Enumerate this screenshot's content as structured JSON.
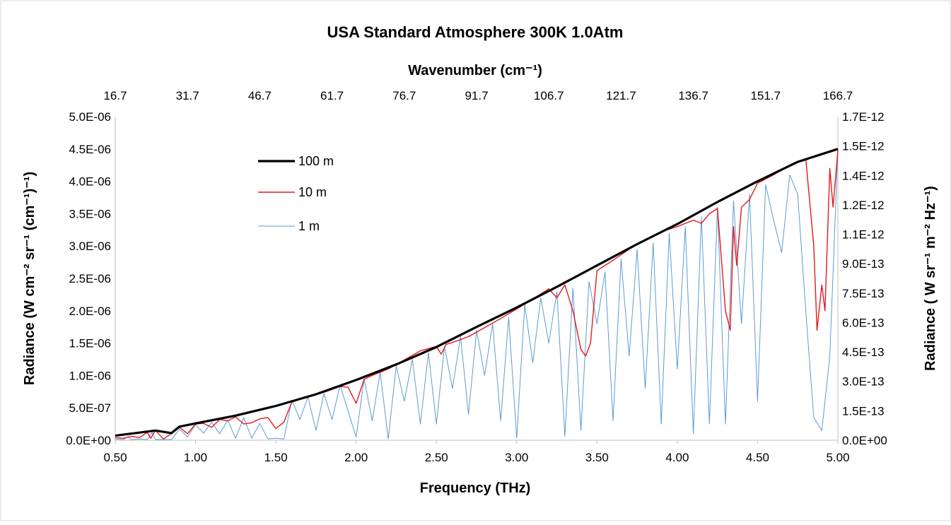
{
  "chart_data": {
    "type": "line",
    "title": "USA Standard Atmosphere  300K 1.0Atm",
    "xlabel": "Frequency (THz)",
    "ylabel_left": "Radiance  (W cm⁻² sr⁻¹ (cm⁻¹)⁻¹)",
    "x2label": "Wavenumber (cm⁻¹)",
    "ylabel_right": "Radiance ( W sr⁻¹ m⁻² Hz⁻¹)",
    "xlim": [
      0.5,
      5.0
    ],
    "ylim": [
      0,
      5e-06
    ],
    "y2lim": [
      0,
      1.7e-12
    ],
    "grid": false,
    "legend_position": "top-left",
    "x_ticks": [
      "0.50",
      "1.00",
      "1.50",
      "2.00",
      "2.50",
      "3.00",
      "3.50",
      "4.00",
      "4.50",
      "5.00"
    ],
    "x2_ticks": [
      "16.7",
      "31.7",
      "46.7",
      "61.7",
      "76.7",
      "91.7",
      "106.7",
      "121.7",
      "136.7",
      "151.7",
      "166.7"
    ],
    "y_ticks": [
      "0.0E+00",
      "5.0E-07",
      "1.0E-06",
      "1.5E-06",
      "2.0E-06",
      "2.5E-06",
      "3.0E-06",
      "3.5E-06",
      "4.0E-06",
      "4.5E-06",
      "5.0E-06"
    ],
    "y2_ticks": [
      "0.0E+00",
      "1.5E-13",
      "3.0E-13",
      "4.5E-13",
      "6.0E-13",
      "7.5E-13",
      "9.0E-13",
      "1.1E-12",
      "1.2E-12",
      "1.4E-12",
      "1.5E-12",
      "1.7E-12"
    ],
    "series": [
      {
        "name": "100 m",
        "color": "#000000",
        "x": [
          0.5,
          0.75,
          0.85,
          0.9,
          1.0,
          1.25,
          1.5,
          1.75,
          2.0,
          2.25,
          2.5,
          2.75,
          3.0,
          3.25,
          3.5,
          3.75,
          4.0,
          4.25,
          4.5,
          4.75,
          5.0
        ],
        "y": [
          7e-08,
          1.5e-07,
          1.1e-07,
          2.1e-07,
          2.6e-07,
          3.8e-07,
          5.3e-07,
          7.1e-07,
          9.3e-07,
          1.17e-06,
          1.44e-06,
          1.75e-06,
          2.05e-06,
          2.37e-06,
          2.7e-06,
          3.03e-06,
          3.34e-06,
          3.68e-06,
          4e-06,
          4.3e-06,
          4.5e-06
        ]
      },
      {
        "name": "10 m",
        "color": "#e31a1c",
        "x": [
          0.5,
          0.55,
          0.6,
          0.65,
          0.7,
          0.72,
          0.75,
          0.8,
          0.85,
          0.9,
          0.95,
          1.0,
          1.05,
          1.1,
          1.15,
          1.2,
          1.25,
          1.3,
          1.35,
          1.4,
          1.45,
          1.5,
          1.55,
          1.6,
          1.7,
          1.8,
          1.9,
          1.95,
          2.0,
          2.05,
          2.1,
          2.2,
          2.3,
          2.4,
          2.5,
          2.53,
          2.56,
          2.6,
          2.7,
          2.8,
          2.9,
          3.0,
          3.1,
          3.2,
          3.25,
          3.3,
          3.35,
          3.4,
          3.43,
          3.46,
          3.5,
          3.6,
          3.7,
          3.8,
          3.9,
          4.0,
          4.1,
          4.15,
          4.2,
          4.25,
          4.3,
          4.33,
          4.35,
          4.37,
          4.4,
          4.45,
          4.5,
          4.6,
          4.7,
          4.8,
          4.85,
          4.87,
          4.9,
          4.92,
          4.95,
          4.97,
          5.0
        ],
        "y": [
          4e-08,
          3e-08,
          6e-08,
          4e-08,
          1.2e-07,
          3e-08,
          1.5e-07,
          2e-08,
          1e-07,
          2e-07,
          1e-07,
          2.5e-07,
          2.6e-07,
          2e-07,
          3.2e-07,
          3e-07,
          3.6e-07,
          2.5e-07,
          2.7e-07,
          3.3e-07,
          3.5e-07,
          1.8e-07,
          2.8e-07,
          5.9e-07,
          6.7e-07,
          7.4e-07,
          8.3e-07,
          8.2e-07,
          5.7e-07,
          9.4e-07,
          1e-06,
          1.1e-06,
          1.24e-06,
          1.38e-06,
          1.45e-06,
          1.33e-06,
          1.48e-06,
          1.51e-06,
          1.6e-06,
          1.74e-06,
          1.88e-06,
          2.03e-06,
          2.18e-06,
          2.34e-06,
          2.2e-06,
          2.4e-06,
          2e-06,
          1.4e-06,
          1.3e-06,
          1.5e-06,
          2.62e-06,
          2.78e-06,
          2.95e-06,
          3.1e-06,
          3.22e-06,
          3.3e-06,
          3.4e-06,
          3.35e-06,
          3.5e-06,
          3.58e-06,
          2e-06,
          1.7e-06,
          3.3e-06,
          2.7e-06,
          3.6e-06,
          3.72e-06,
          3.97e-06,
          4.1e-06,
          4.25e-06,
          4.35e-06,
          3e-06,
          1.7e-06,
          2.4e-06,
          2e-06,
          4.2e-06,
          3.6e-06,
          4.48e-06
        ]
      },
      {
        "name": "1 m",
        "color": "#5b9bd5",
        "x": [
          0.5,
          0.55,
          0.58,
          0.6,
          0.65,
          0.7,
          0.73,
          0.75,
          0.8,
          0.85,
          0.9,
          0.95,
          1.0,
          1.05,
          1.1,
          1.15,
          1.2,
          1.25,
          1.3,
          1.35,
          1.4,
          1.45,
          1.5,
          1.55,
          1.6,
          1.65,
          1.7,
          1.75,
          1.8,
          1.85,
          1.9,
          1.95,
          2.0,
          2.05,
          2.1,
          2.15,
          2.2,
          2.25,
          2.3,
          2.35,
          2.4,
          2.45,
          2.5,
          2.55,
          2.6,
          2.65,
          2.7,
          2.75,
          2.8,
          2.85,
          2.9,
          2.95,
          3.0,
          3.05,
          3.1,
          3.15,
          3.2,
          3.25,
          3.3,
          3.35,
          3.4,
          3.45,
          3.5,
          3.55,
          3.6,
          3.65,
          3.7,
          3.75,
          3.8,
          3.85,
          3.9,
          3.95,
          4.0,
          4.05,
          4.1,
          4.15,
          4.2,
          4.25,
          4.3,
          4.35,
          4.4,
          4.45,
          4.5,
          4.55,
          4.6,
          4.65,
          4.7,
          4.75,
          4.8,
          4.85,
          4.9,
          4.95,
          5.0
        ],
        "y": [
          2e-08,
          1e-08,
          6e-08,
          1e-08,
          2e-08,
          1e-08,
          1.2e-07,
          1e-08,
          1e-08,
          1e-08,
          1.7e-07,
          5e-08,
          2.4e-07,
          1.1e-07,
          2.8e-07,
          1e-07,
          3.1e-07,
          3e-08,
          3.5e-07,
          3e-08,
          2.6e-07,
          2e-08,
          3e-08,
          2e-08,
          6.2e-07,
          3.2e-07,
          6.7e-07,
          1.5e-07,
          7.2e-07,
          3.2e-07,
          8.5e-07,
          4.5e-07,
          5e-08,
          9.5e-07,
          3e-07,
          1.05e-06,
          2e-08,
          1.15e-06,
          6e-07,
          1.25e-06,
          2.5e-07,
          1.35e-06,
          2.5e-07,
          1.45e-06,
          8e-07,
          1.6e-06,
          4e-07,
          1.7e-06,
          1e-06,
          1.8e-06,
          3e-07,
          1.9e-06,
          3e-08,
          2.1e-06,
          1.2e-06,
          2.2e-06,
          1.5e-06,
          2.3e-06,
          6e-08,
          2.35e-06,
          1.5e-07,
          2.45e-06,
          1.8e-06,
          2.6e-06,
          3e-07,
          2.8e-06,
          1.3e-06,
          2.95e-06,
          8e-07,
          3.05e-06,
          2.5e-07,
          3.2e-06,
          1.1e-06,
          3.3e-06,
          1e-07,
          3.45e-06,
          2.5e-07,
          3.6e-06,
          2.5e-07,
          3.7e-06,
          1.8e-06,
          3.8e-06,
          6e-07,
          3.95e-06,
          3.4e-06,
          2.9e-06,
          4.1e-06,
          3.8e-06,
          2e-06,
          3.5e-07,
          1.5e-07,
          1.3e-06,
          4.5e-06
        ]
      }
    ]
  }
}
